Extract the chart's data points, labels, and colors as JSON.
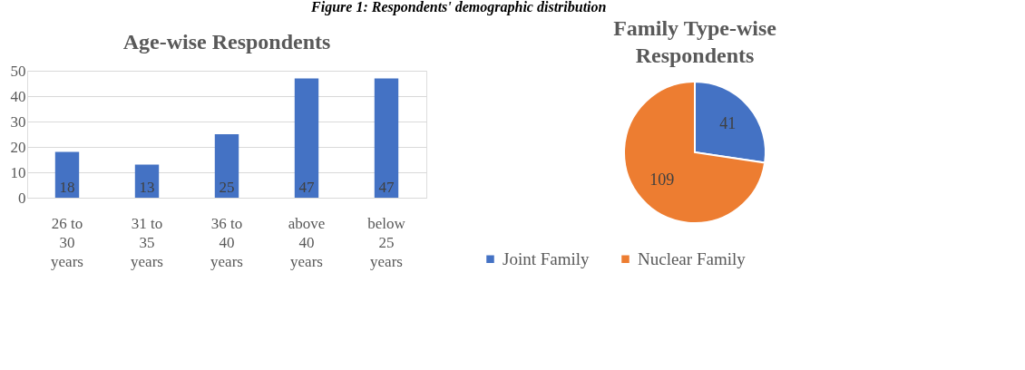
{
  "chart_data": [
    {
      "type": "bar",
      "title": "Age-wise Respondents",
      "annotations": [
        "Figure 1: Respondents' demographic distribution"
      ],
      "categories": [
        "26 to 30 years",
        "31 to 35 years",
        "36 to 40 years",
        "above 40 years",
        "below 25 years"
      ],
      "values": [
        18,
        13,
        25,
        47,
        47
      ],
      "color": "#4472c4",
      "ylim": [
        0,
        50
      ],
      "yticks": [
        0,
        10,
        20,
        30,
        40,
        50
      ],
      "grid": "y",
      "data_labels": true
    },
    {
      "type": "pie",
      "title": "Family Type-wise Respondents",
      "categories": [
        "Joint Family",
        "Nuclear Family"
      ],
      "values": [
        41,
        109
      ],
      "colors": [
        "#4472c4",
        "#ed7d31"
      ],
      "data_labels": true,
      "legend": "bottom"
    }
  ]
}
